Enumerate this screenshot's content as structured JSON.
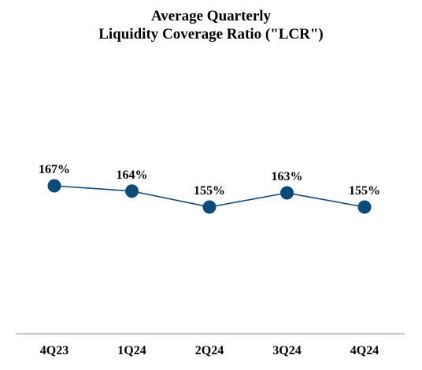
{
  "chart_data": {
    "type": "line",
    "title_lines": [
      "Average Quarterly",
      "Liquidity Coverage Ratio (\"LCR\")"
    ],
    "categories": [
      "4Q23",
      "1Q24",
      "2Q24",
      "3Q24",
      "4Q24"
    ],
    "values": [
      167,
      164,
      155,
      163,
      155
    ],
    "data_labels": [
      "167%",
      "164%",
      "155%",
      "163%",
      "155%"
    ],
    "value_unit": "%",
    "grid": false,
    "legend": "none",
    "colors": {
      "line": "#0d4a7a",
      "marker": "#0d4a7a",
      "axis": "#a6a6a6",
      "text": "#000000"
    }
  }
}
